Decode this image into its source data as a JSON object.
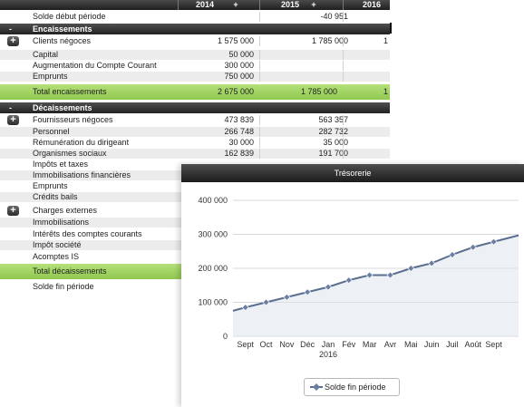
{
  "table": {
    "years": [
      "2014",
      "2015",
      "2016"
    ],
    "plus_glyph": "+",
    "minus_glyph": "-",
    "opening_balance": {
      "label": "Solde début période",
      "v2015": "-40 951"
    },
    "encaissements": {
      "title": "Encaissements",
      "rows": [
        {
          "label": "Clients négoces",
          "v2014": "1 575 000",
          "v2015": "1 785 000",
          "v2016": "1"
        },
        {
          "label": "Capital",
          "v2014": "50 000",
          "v2015": "",
          "v2016": ""
        },
        {
          "label": "Augmentation du Compte Courant",
          "v2014": "300 000",
          "v2015": "",
          "v2016": ""
        },
        {
          "label": "Emprunts",
          "v2014": "750 000",
          "v2015": "",
          "v2016": ""
        }
      ],
      "total": {
        "label": "Total encaissements",
        "v2014": "2 675 000",
        "v2015": "1 785 000",
        "v2016": "1"
      }
    },
    "decaissements": {
      "title": "Décaissements",
      "rows": [
        {
          "label": "Fournisseurs négoces",
          "v2014": "473 839",
          "v2015": "563 357"
        },
        {
          "label": "Personnel",
          "v2014": "266 748",
          "v2015": "282 732"
        },
        {
          "label": "Rémunération du dirigeant",
          "v2014": "30 000",
          "v2015": "35 000"
        },
        {
          "label": "Organismes sociaux",
          "v2014": "162 839",
          "v2015": "191 700"
        },
        {
          "label": "Impôts et taxes",
          "v2014": "",
          "v2015": ""
        },
        {
          "label": "Immobilisations financières",
          "v2014": "",
          "v2015": ""
        },
        {
          "label": "Emprunts",
          "v2014": "",
          "v2015": ""
        },
        {
          "label": "Crédits bails",
          "v2014": "",
          "v2015": ""
        },
        {
          "label": "Charges externes",
          "v2014": "",
          "v2015": ""
        },
        {
          "label": "Immobilisations",
          "v2014": "",
          "v2015": ""
        },
        {
          "label": "Intérêts des comptes courants",
          "v2014": "",
          "v2015": ""
        },
        {
          "label": "Impôt société",
          "v2014": "",
          "v2015": ""
        },
        {
          "label": "Acomptes IS",
          "v2014": "",
          "v2015": ""
        }
      ],
      "total": {
        "label": "Total décaissements"
      }
    },
    "closing_balance": {
      "label": "Solde fin période"
    }
  },
  "chart_window": {
    "title": "Trésorerie",
    "legend_label": "Solde fin période"
  },
  "chart_data": {
    "type": "line",
    "title": "Trésorerie",
    "categories": [
      "Sept",
      "Oct",
      "Nov",
      "Déc",
      "Jan",
      "Fév",
      "Mar",
      "Avr",
      "Mai",
      "Juin",
      "Juil",
      "Août",
      "Sept"
    ],
    "year_label": "2016",
    "year_label_under": "Jan",
    "yticks": [
      "400 000",
      "300 000",
      "200 000",
      "100 000",
      "0"
    ],
    "ylim": [
      0,
      400000
    ],
    "series": [
      {
        "name": "Solde fin période",
        "start_value": 75000,
        "values": [
          85000,
          100000,
          115000,
          130000,
          145000,
          165000,
          180000,
          180000,
          200000,
          215000,
          240000,
          262000,
          278000
        ],
        "end_value": 297000
      }
    ],
    "legend_position": "bottom",
    "grid": true,
    "colors": {
      "line": "#5a6e90",
      "marker": "#6b7fa3",
      "area": "#dfe5ef",
      "grid": "#d8d8d8"
    }
  }
}
